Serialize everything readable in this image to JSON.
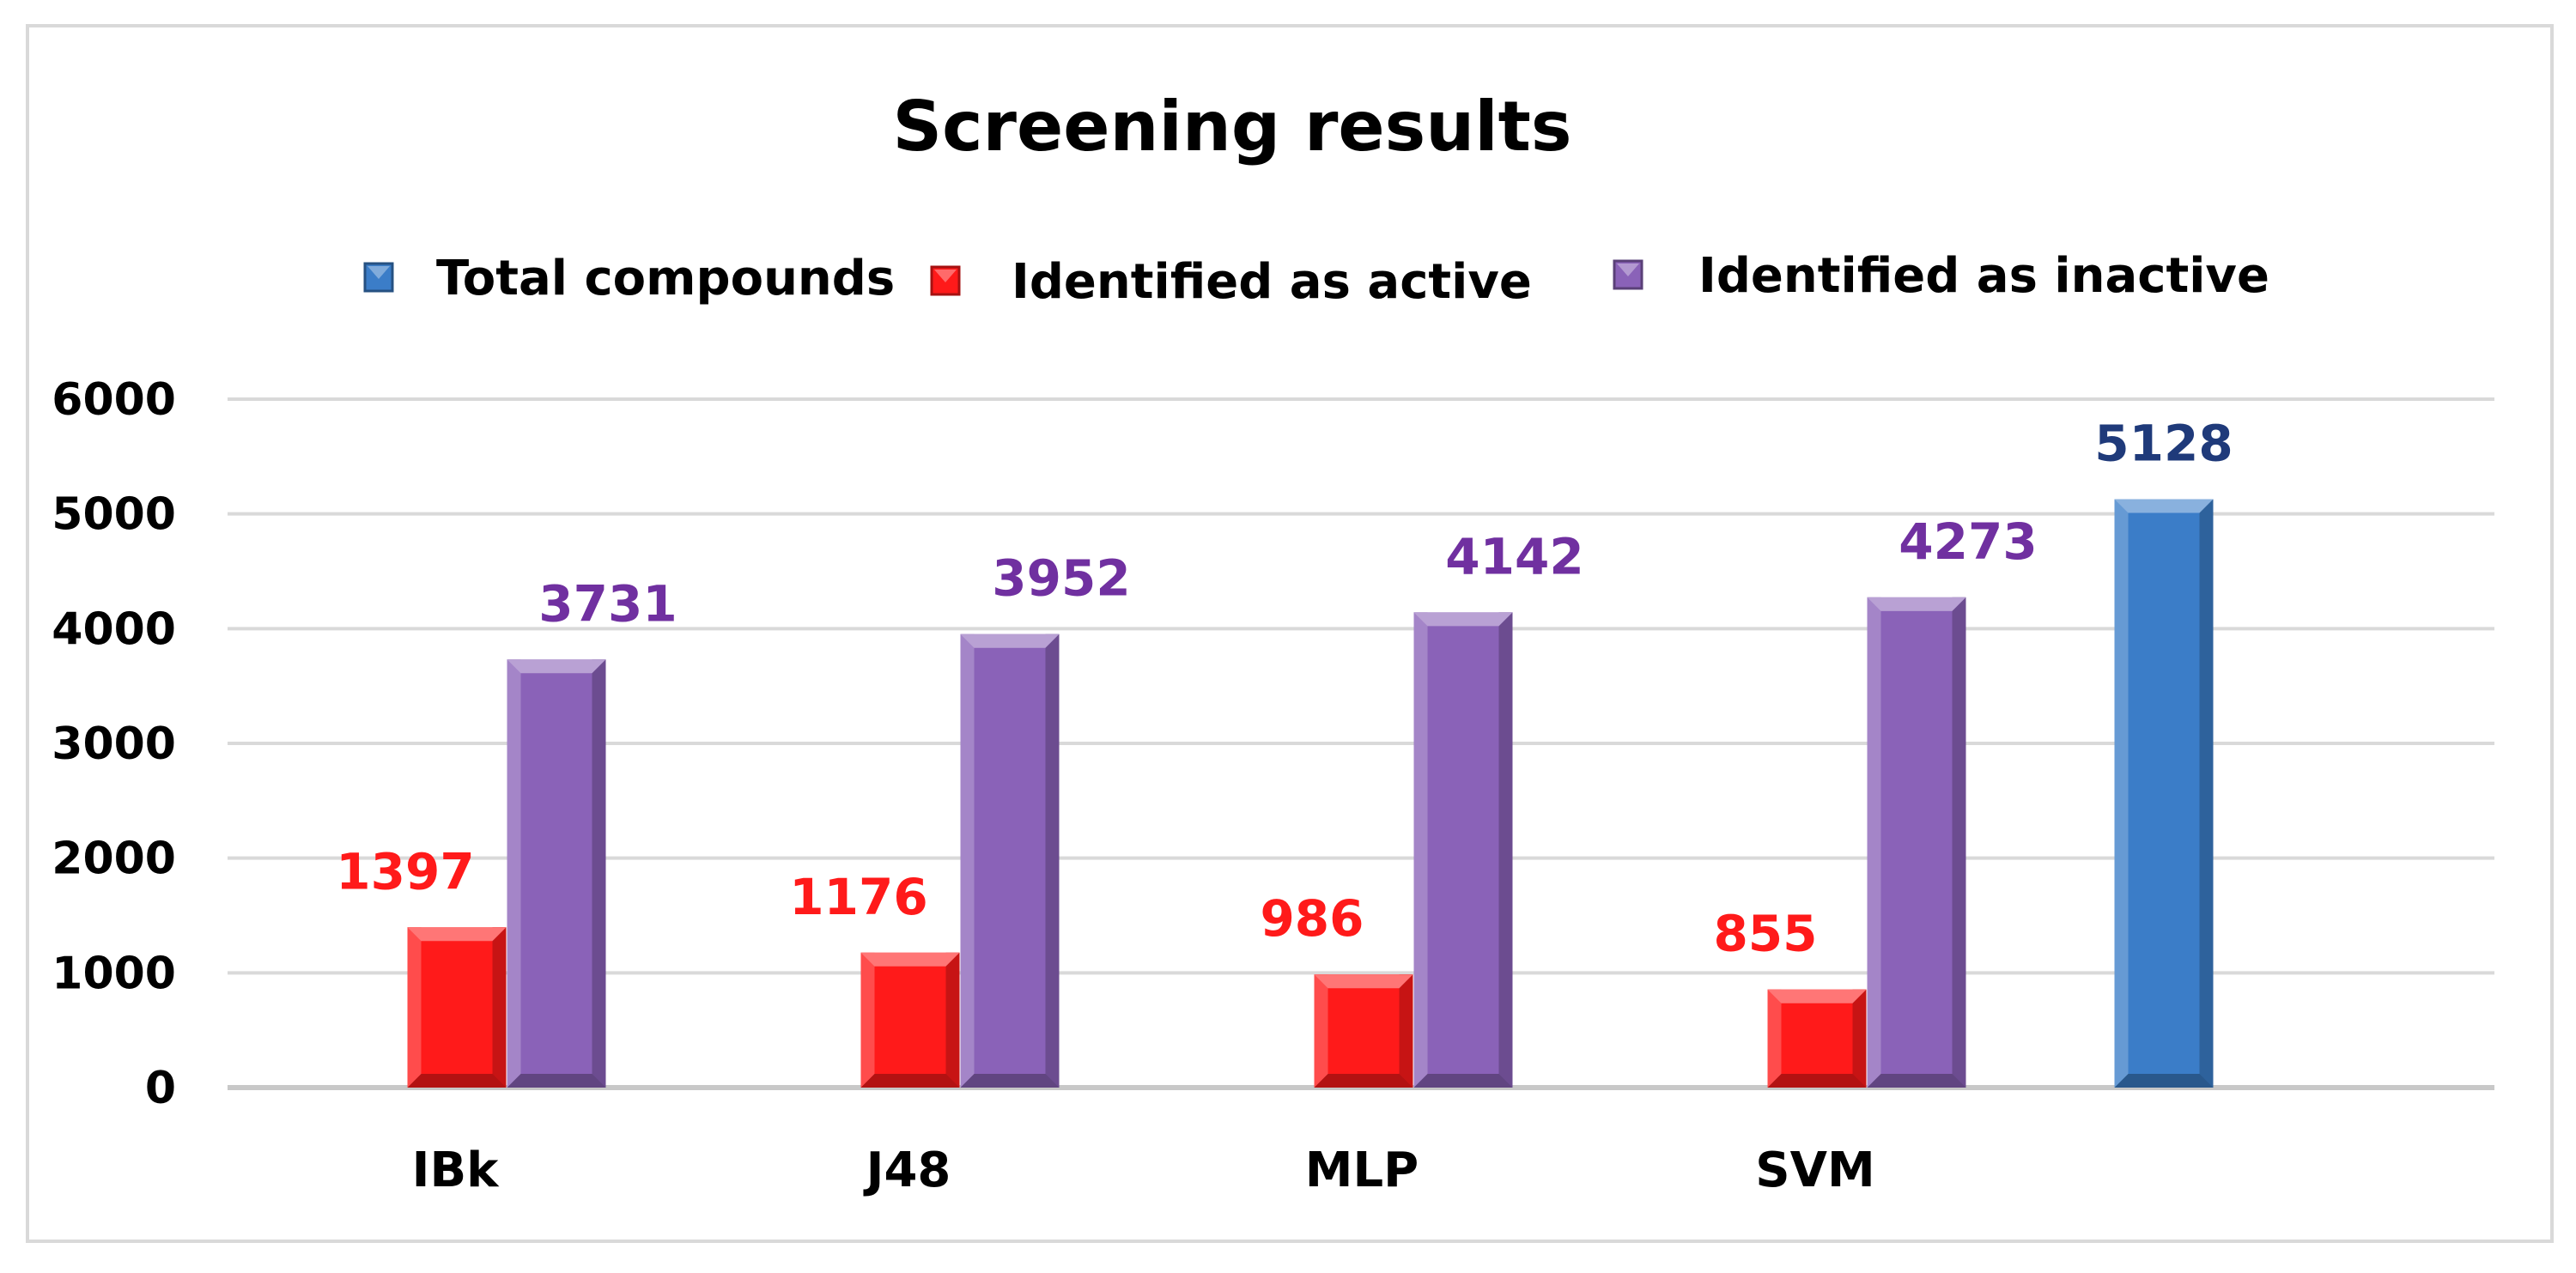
{
  "chart_data": {
    "type": "bar",
    "title": "Screening results",
    "categories": [
      "IBk",
      "J48",
      "MLP",
      "SVM",
      ""
    ],
    "series": [
      {
        "name": "Total compounds",
        "color": "#3b7dc8",
        "label_color": "#1f3a7a",
        "values": [
          null,
          null,
          null,
          null,
          5128
        ]
      },
      {
        "name": "Identified as active",
        "color": "#ff1a1a",
        "label_color": "#ff1a1a",
        "values": [
          1397,
          1176,
          986,
          855,
          null
        ]
      },
      {
        "name": "Identified as inactive",
        "color": "#8a62b8",
        "label_color": "#7030a0",
        "values": [
          3731,
          3952,
          4142,
          4273,
          null
        ]
      }
    ],
    "ylim": [
      0,
      6000
    ],
    "yticks": [
      0,
      1000,
      2000,
      3000,
      4000,
      5000,
      6000
    ],
    "grid": true,
    "legend_position": "top"
  }
}
